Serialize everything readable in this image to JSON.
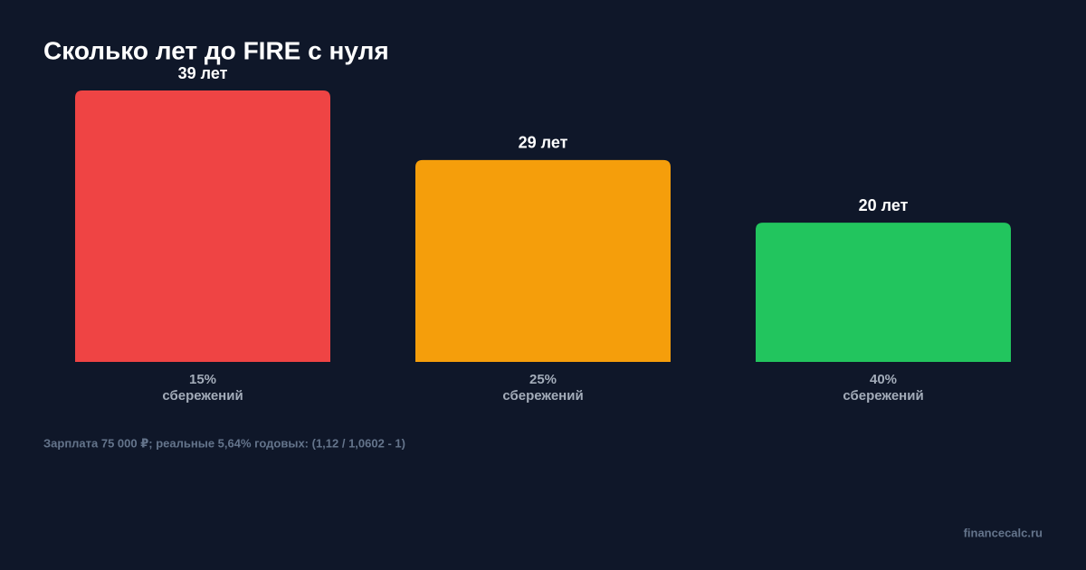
{
  "chart_data": {
    "type": "bar",
    "title": "Сколько лет до FIRE с нуля",
    "categories": [
      "15%\nсбережений",
      "25%\nсбережений",
      "40%\nсбережений"
    ],
    "values": [
      39,
      29,
      20
    ],
    "value_labels": [
      "39 лет",
      "29 лет",
      "20 лет"
    ],
    "colors": [
      "#ef4444",
      "#f59e0b",
      "#22c55e"
    ],
    "note": "Зарплата 75 000 ₽; реальные 5,64% годовых: (1,12 / 1,0602 - 1)",
    "source": "financecalc.ru"
  }
}
